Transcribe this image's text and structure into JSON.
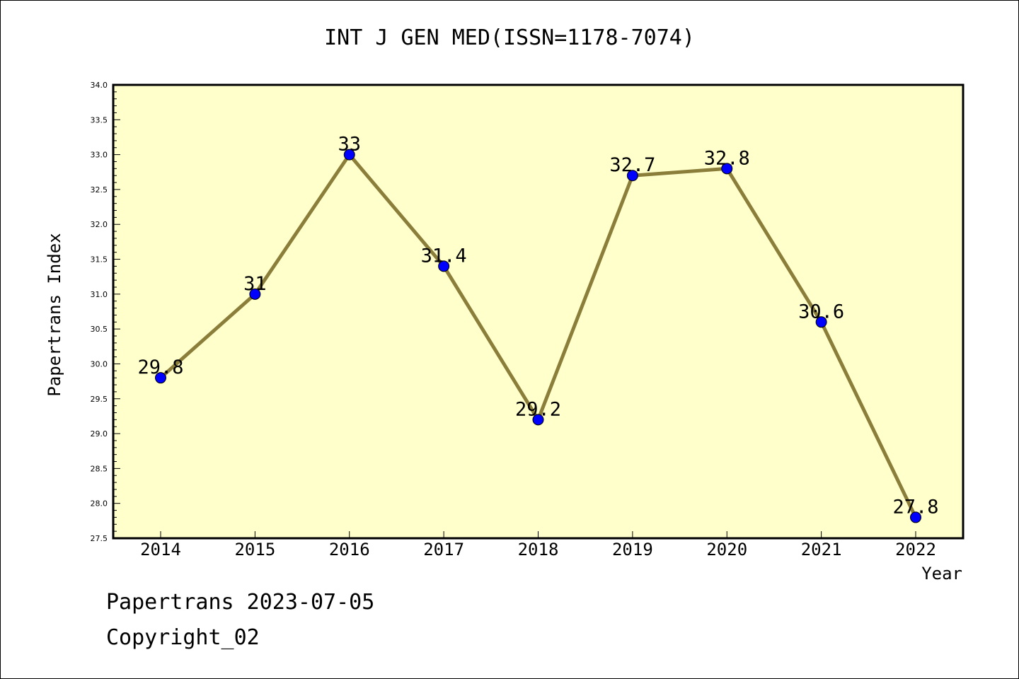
{
  "chart_data": {
    "type": "line",
    "title": "INT J GEN MED(ISSN=1178-7074)",
    "xlabel": "Year",
    "ylabel": "Papertrans Index",
    "categories": [
      "2014",
      "2015",
      "2016",
      "2017",
      "2018",
      "2019",
      "2020",
      "2021",
      "2022"
    ],
    "series": [
      {
        "values": [
          29.8,
          31,
          33,
          31.4,
          29.2,
          32.7,
          32.8,
          30.6,
          27.8
        ],
        "labels": [
          "29.8",
          "31",
          "33",
          "31.4",
          "29.2",
          "32.7",
          "32.8",
          "30.6",
          "27.8"
        ]
      }
    ],
    "ylim": [
      27.5,
      34.0
    ],
    "yticks": [
      "27.5",
      "28.0",
      "28.5",
      "29.0",
      "29.5",
      "30.0",
      "30.5",
      "31.0",
      "31.5",
      "32.0",
      "32.5",
      "33.0",
      "33.5",
      "34.0"
    ],
    "grid": false,
    "colors": {
      "plot_background": "#ffffcc",
      "line": "#8b7d3a",
      "marker": "#0000ff"
    }
  },
  "footer": {
    "date_text": "Papertrans 2023-07-05",
    "copyright_text": "Copyright_02"
  }
}
